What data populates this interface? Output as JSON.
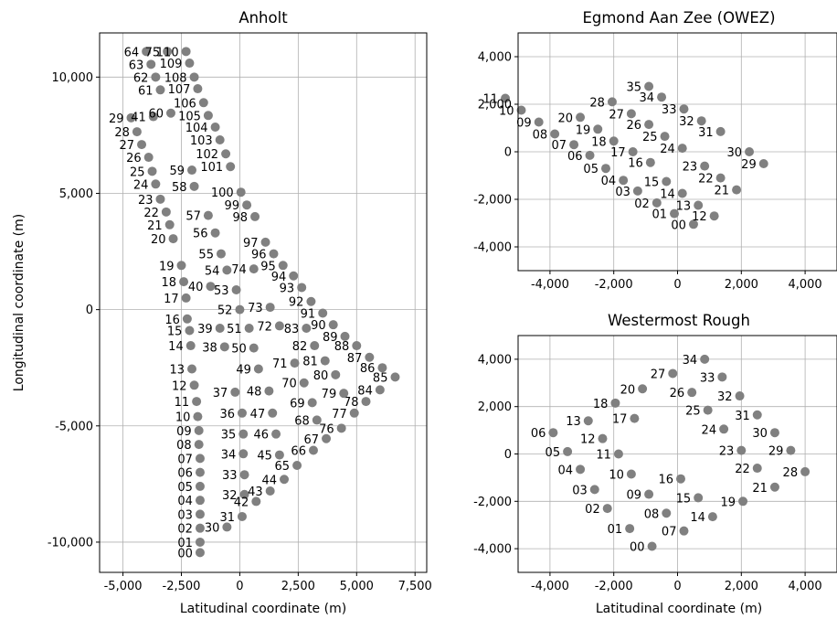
{
  "chart_data": [
    {
      "type": "scatter",
      "title": "Anholt",
      "xlabel": "Latitudinal coordinate (m)",
      "ylabel": "Longitudinal coordinate (m)",
      "xlim": [
        -6000,
        8000
      ],
      "ylim": [
        -11300,
        11900
      ],
      "xticks": [
        -5000,
        -2500,
        0,
        2500,
        5000,
        7500
      ],
      "xtick_labels": [
        "-5,000",
        "-2,500",
        "0",
        "2,500",
        "5,000",
        "7,500"
      ],
      "yticks": [
        -10000,
        -5000,
        0,
        5000,
        10000
      ],
      "ytick_labels": [
        "-10,000",
        "-5,000",
        "0",
        "5,000",
        "10,000"
      ],
      "grid": true,
      "marker_color": "#808080",
      "points": [
        {
          "label": "00",
          "x": -1700,
          "y": -10450
        },
        {
          "label": "01",
          "x": -1700,
          "y": -10000
        },
        {
          "label": "02",
          "x": -1700,
          "y": -9400
        },
        {
          "label": "03",
          "x": -1700,
          "y": -8800
        },
        {
          "label": "04",
          "x": -1700,
          "y": -8200
        },
        {
          "label": "05",
          "x": -1700,
          "y": -7600
        },
        {
          "label": "06",
          "x": -1700,
          "y": -7000
        },
        {
          "label": "07",
          "x": -1700,
          "y": -6400
        },
        {
          "label": "08",
          "x": -1750,
          "y": -5800
        },
        {
          "label": "09",
          "x": -1750,
          "y": -5200
        },
        {
          "label": "10",
          "x": -1800,
          "y": -4600
        },
        {
          "label": "11",
          "x": -1850,
          "y": -3950
        },
        {
          "label": "12",
          "x": -1950,
          "y": -3250
        },
        {
          "label": "13",
          "x": -2050,
          "y": -2550
        },
        {
          "label": "14",
          "x": -2100,
          "y": -1550
        },
        {
          "label": "15",
          "x": -2150,
          "y": -900
        },
        {
          "label": "16",
          "x": -2250,
          "y": -400
        },
        {
          "label": "17",
          "x": -2300,
          "y": 500
        },
        {
          "label": "18",
          "x": -2400,
          "y": 1200
        },
        {
          "label": "19",
          "x": -2500,
          "y": 1900
        },
        {
          "label": "20",
          "x": -2850,
          "y": 3050
        },
        {
          "label": "21",
          "x": -3000,
          "y": 3650
        },
        {
          "label": "22",
          "x": -3150,
          "y": 4200
        },
        {
          "label": "23",
          "x": -3400,
          "y": 4750
        },
        {
          "label": "24",
          "x": -3600,
          "y": 5400
        },
        {
          "label": "25",
          "x": -3750,
          "y": 5950
        },
        {
          "label": "26",
          "x": -3900,
          "y": 6550
        },
        {
          "label": "27",
          "x": -4200,
          "y": 7100
        },
        {
          "label": "28",
          "x": -4400,
          "y": 7650
        },
        {
          "label": "29",
          "x": -4650,
          "y": 8250
        },
        {
          "label": "30",
          "x": -550,
          "y": -9350
        },
        {
          "label": "31",
          "x": 100,
          "y": -8900
        },
        {
          "label": "32",
          "x": 200,
          "y": -7950
        },
        {
          "label": "33",
          "x": 200,
          "y": -7100
        },
        {
          "label": "34",
          "x": 150,
          "y": -6200
        },
        {
          "label": "35",
          "x": 150,
          "y": -5350
        },
        {
          "label": "36",
          "x": 100,
          "y": -4450
        },
        {
          "label": "37",
          "x": -200,
          "y": -3550
        },
        {
          "label": "38",
          "x": -650,
          "y": -1600
        },
        {
          "label": "39",
          "x": -850,
          "y": -800
        },
        {
          "label": "40",
          "x": -1250,
          "y": 1000
        },
        {
          "label": "41",
          "x": -3700,
          "y": 8300
        },
        {
          "label": "42",
          "x": 700,
          "y": -8250
        },
        {
          "label": "43",
          "x": 1300,
          "y": -7800
        },
        {
          "label": "44",
          "x": 1900,
          "y": -7300
        },
        {
          "label": "45",
          "x": 1700,
          "y": -6250
        },
        {
          "label": "46",
          "x": 1550,
          "y": -5350
        },
        {
          "label": "47",
          "x": 1400,
          "y": -4450
        },
        {
          "label": "48",
          "x": 1250,
          "y": -3500
        },
        {
          "label": "49",
          "x": 800,
          "y": -2550
        },
        {
          "label": "50",
          "x": 600,
          "y": -1650
        },
        {
          "label": "51",
          "x": 400,
          "y": -800
        },
        {
          "label": "52",
          "x": 0,
          "y": 0
        },
        {
          "label": "53",
          "x": -150,
          "y": 850
        },
        {
          "label": "54",
          "x": -550,
          "y": 1700
        },
        {
          "label": "55",
          "x": -800,
          "y": 2400
        },
        {
          "label": "56",
          "x": -1050,
          "y": 3300
        },
        {
          "label": "57",
          "x": -1350,
          "y": 4050
        },
        {
          "label": "58",
          "x": -1950,
          "y": 5300
        },
        {
          "label": "59",
          "x": -2050,
          "y": 6000
        },
        {
          "label": "60",
          "x": -2950,
          "y": 8450
        },
        {
          "label": "61",
          "x": -3400,
          "y": 9450
        },
        {
          "label": "62",
          "x": -3600,
          "y": 10000
        },
        {
          "label": "63",
          "x": -3800,
          "y": 10550
        },
        {
          "label": "64",
          "x": -4000,
          "y": 11100
        },
        {
          "label": "65",
          "x": 2450,
          "y": -6700
        },
        {
          "label": "66",
          "x": 3150,
          "y": -6050
        },
        {
          "label": "67",
          "x": 3700,
          "y": -5550
        },
        {
          "label": "68",
          "x": 3300,
          "y": -4750
        },
        {
          "label": "69",
          "x": 3100,
          "y": -4000
        },
        {
          "label": "70",
          "x": 2750,
          "y": -3150
        },
        {
          "label": "71",
          "x": 2350,
          "y": -2300
        },
        {
          "label": "72",
          "x": 1700,
          "y": -700
        },
        {
          "label": "73",
          "x": 1300,
          "y": 100
        },
        {
          "label": "74",
          "x": 600,
          "y": 1750
        },
        {
          "label": "75",
          "x": -3100,
          "y": 11100
        },
        {
          "label": "76",
          "x": 4350,
          "y": -5100
        },
        {
          "label": "77",
          "x": 4900,
          "y": -4450
        },
        {
          "label": "78",
          "x": 5400,
          "y": -3950
        },
        {
          "label": "79",
          "x": 4450,
          "y": -3600
        },
        {
          "label": "80",
          "x": 4100,
          "y": -2800
        },
        {
          "label": "81",
          "x": 3650,
          "y": -2200
        },
        {
          "label": "82",
          "x": 3200,
          "y": -1550
        },
        {
          "label": "83",
          "x": 2850,
          "y": -800
        },
        {
          "label": "84",
          "x": 6000,
          "y": -3450
        },
        {
          "label": "85",
          "x": 6650,
          "y": -2900
        },
        {
          "label": "86",
          "x": 6100,
          "y": -2500
        },
        {
          "label": "87",
          "x": 5550,
          "y": -2050
        },
        {
          "label": "88",
          "x": 5000,
          "y": -1550
        },
        {
          "label": "89",
          "x": 4500,
          "y": -1150
        },
        {
          "label": "90",
          "x": 4000,
          "y": -650
        },
        {
          "label": "91",
          "x": 3550,
          "y": -150
        },
        {
          "label": "92",
          "x": 3050,
          "y": 350
        },
        {
          "label": "93",
          "x": 2650,
          "y": 950
        },
        {
          "label": "94",
          "x": 2300,
          "y": 1450
        },
        {
          "label": "95",
          "x": 1850,
          "y": 1900
        },
        {
          "label": "96",
          "x": 1450,
          "y": 2400
        },
        {
          "label": "97",
          "x": 1100,
          "y": 2900
        },
        {
          "label": "98",
          "x": 650,
          "y": 4000
        },
        {
          "label": "99",
          "x": 300,
          "y": 4500
        },
        {
          "label": "100",
          "x": 50,
          "y": 5050
        },
        {
          "label": "101",
          "x": -400,
          "y": 6150
        },
        {
          "label": "102",
          "x": -600,
          "y": 6700
        },
        {
          "label": "103",
          "x": -850,
          "y": 7300
        },
        {
          "label": "104",
          "x": -1050,
          "y": 7850
        },
        {
          "label": "105",
          "x": -1350,
          "y": 8350
        },
        {
          "label": "106",
          "x": -1550,
          "y": 8900
        },
        {
          "label": "107",
          "x": -1800,
          "y": 9500
        },
        {
          "label": "108",
          "x": -1950,
          "y": 10000
        },
        {
          "label": "109",
          "x": -2150,
          "y": 10600
        },
        {
          "label": "110",
          "x": -2300,
          "y": 11100
        }
      ]
    },
    {
      "type": "scatter",
      "title": "Egmond Aan Zee (OWEZ)",
      "xlabel": "",
      "ylabel": "",
      "xlim": [
        -5000,
        5000
      ],
      "ylim": [
        -5000,
        5000
      ],
      "xticks": [
        -4000,
        -2000,
        0,
        2000,
        4000
      ],
      "xtick_labels": [
        "-4,000",
        "-2,000",
        "0",
        "2,000",
        "4,000"
      ],
      "yticks": [
        -4000,
        -2000,
        0,
        2000,
        4000
      ],
      "ytick_labels": [
        "-4,000",
        "-2,000",
        "0",
        "2,000",
        "4,000"
      ],
      "grid": true,
      "marker_color": "#808080",
      "points": [
        {
          "label": "00",
          "x": 500,
          "y": -3050
        },
        {
          "label": "01",
          "x": -100,
          "y": -2600
        },
        {
          "label": "02",
          "x": -650,
          "y": -2150
        },
        {
          "label": "03",
          "x": -1250,
          "y": -1650
        },
        {
          "label": "04",
          "x": -1700,
          "y": -1200
        },
        {
          "label": "05",
          "x": -2250,
          "y": -700
        },
        {
          "label": "06",
          "x": -2750,
          "y": -150
        },
        {
          "label": "07",
          "x": -3250,
          "y": 300
        },
        {
          "label": "08",
          "x": -3850,
          "y": 750
        },
        {
          "label": "09",
          "x": -4350,
          "y": 1250
        },
        {
          "label": "10",
          "x": -4900,
          "y": 1750
        },
        {
          "label": "11",
          "x": -5400,
          "y": 2250
        },
        {
          "label": "12",
          "x": 1150,
          "y": -2700
        },
        {
          "label": "13",
          "x": 650,
          "y": -2250
        },
        {
          "label": "14",
          "x": 150,
          "y": -1750
        },
        {
          "label": "15",
          "x": -350,
          "y": -1250
        },
        {
          "label": "16",
          "x": -850,
          "y": -450
        },
        {
          "label": "17",
          "x": -1400,
          "y": 0
        },
        {
          "label": "18",
          "x": -2000,
          "y": 450
        },
        {
          "label": "19",
          "x": -2500,
          "y": 950
        },
        {
          "label": "20",
          "x": -3050,
          "y": 1450
        },
        {
          "label": "21",
          "x": 1850,
          "y": -1600
        },
        {
          "label": "22",
          "x": 1350,
          "y": -1100
        },
        {
          "label": "23",
          "x": 850,
          "y": -600
        },
        {
          "label": "24",
          "x": 150,
          "y": 150
        },
        {
          "label": "25",
          "x": -400,
          "y": 650
        },
        {
          "label": "26",
          "x": -900,
          "y": 1150
        },
        {
          "label": "27",
          "x": -1450,
          "y": 1600
        },
        {
          "label": "28",
          "x": -2050,
          "y": 2100
        },
        {
          "label": "29",
          "x": 2700,
          "y": -500
        },
        {
          "label": "30",
          "x": 2250,
          "y": 0
        },
        {
          "label": "31",
          "x": 1350,
          "y": 850
        },
        {
          "label": "32",
          "x": 750,
          "y": 1300
        },
        {
          "label": "33",
          "x": 200,
          "y": 1800
        },
        {
          "label": "34",
          "x": -500,
          "y": 2300
        },
        {
          "label": "35",
          "x": -900,
          "y": 2750
        }
      ]
    },
    {
      "type": "scatter",
      "title": "Westermost Rough",
      "xlabel": "Latitudinal coordinate (m)",
      "ylabel": "",
      "xlim": [
        -5000,
        5000
      ],
      "ylim": [
        -5000,
        5000
      ],
      "xticks": [
        -4000,
        -2000,
        0,
        2000,
        4000
      ],
      "xtick_labels": [
        "-4,000",
        "-2,000",
        "0",
        "2,000",
        "4,000"
      ],
      "yticks": [
        -4000,
        -2000,
        0,
        2000,
        4000
      ],
      "ytick_labels": [
        "-4,000",
        "-2,000",
        "0",
        "2,000",
        "4,000"
      ],
      "grid": true,
      "marker_color": "#808080",
      "points": [
        {
          "label": "00",
          "x": -800,
          "y": -3900
        },
        {
          "label": "01",
          "x": -1500,
          "y": -3150
        },
        {
          "label": "02",
          "x": -2200,
          "y": -2300
        },
        {
          "label": "03",
          "x": -2600,
          "y": -1500
        },
        {
          "label": "04",
          "x": -3050,
          "y": -650
        },
        {
          "label": "05",
          "x": -3450,
          "y": 100
        },
        {
          "label": "06",
          "x": -3900,
          "y": 900
        },
        {
          "label": "07",
          "x": 200,
          "y": -3250
        },
        {
          "label": "08",
          "x": -350,
          "y": -2500
        },
        {
          "label": "09",
          "x": -900,
          "y": -1700
        },
        {
          "label": "10",
          "x": -1450,
          "y": -850
        },
        {
          "label": "11",
          "x": -1850,
          "y": 0
        },
        {
          "label": "12",
          "x": -2350,
          "y": 650
        },
        {
          "label": "13",
          "x": -2800,
          "y": 1400
        },
        {
          "label": "14",
          "x": 1100,
          "y": -2650
        },
        {
          "label": "15",
          "x": 650,
          "y": -1850
        },
        {
          "label": "16",
          "x": 100,
          "y": -1050
        },
        {
          "label": "17",
          "x": -1350,
          "y": 1500
        },
        {
          "label": "18",
          "x": -1950,
          "y": 2150
        },
        {
          "label": "19",
          "x": 2050,
          "y": -2000
        },
        {
          "label": "20",
          "x": -1100,
          "y": 2750
        },
        {
          "label": "21",
          "x": 3050,
          "y": -1400
        },
        {
          "label": "22",
          "x": 2500,
          "y": -600
        },
        {
          "label": "23",
          "x": 2000,
          "y": 150
        },
        {
          "label": "24",
          "x": 1450,
          "y": 1050
        },
        {
          "label": "25",
          "x": 950,
          "y": 1850
        },
        {
          "label": "26",
          "x": 450,
          "y": 2600
        },
        {
          "label": "27",
          "x": -150,
          "y": 3400
        },
        {
          "label": "28",
          "x": 4000,
          "y": -750
        },
        {
          "label": "29",
          "x": 3550,
          "y": 150
        },
        {
          "label": "30",
          "x": 3050,
          "y": 900
        },
        {
          "label": "31",
          "x": 2500,
          "y": 1650
        },
        {
          "label": "32",
          "x": 1950,
          "y": 2450
        },
        {
          "label": "33",
          "x": 1400,
          "y": 3250
        },
        {
          "label": "34",
          "x": 850,
          "y": 4000
        }
      ]
    }
  ]
}
